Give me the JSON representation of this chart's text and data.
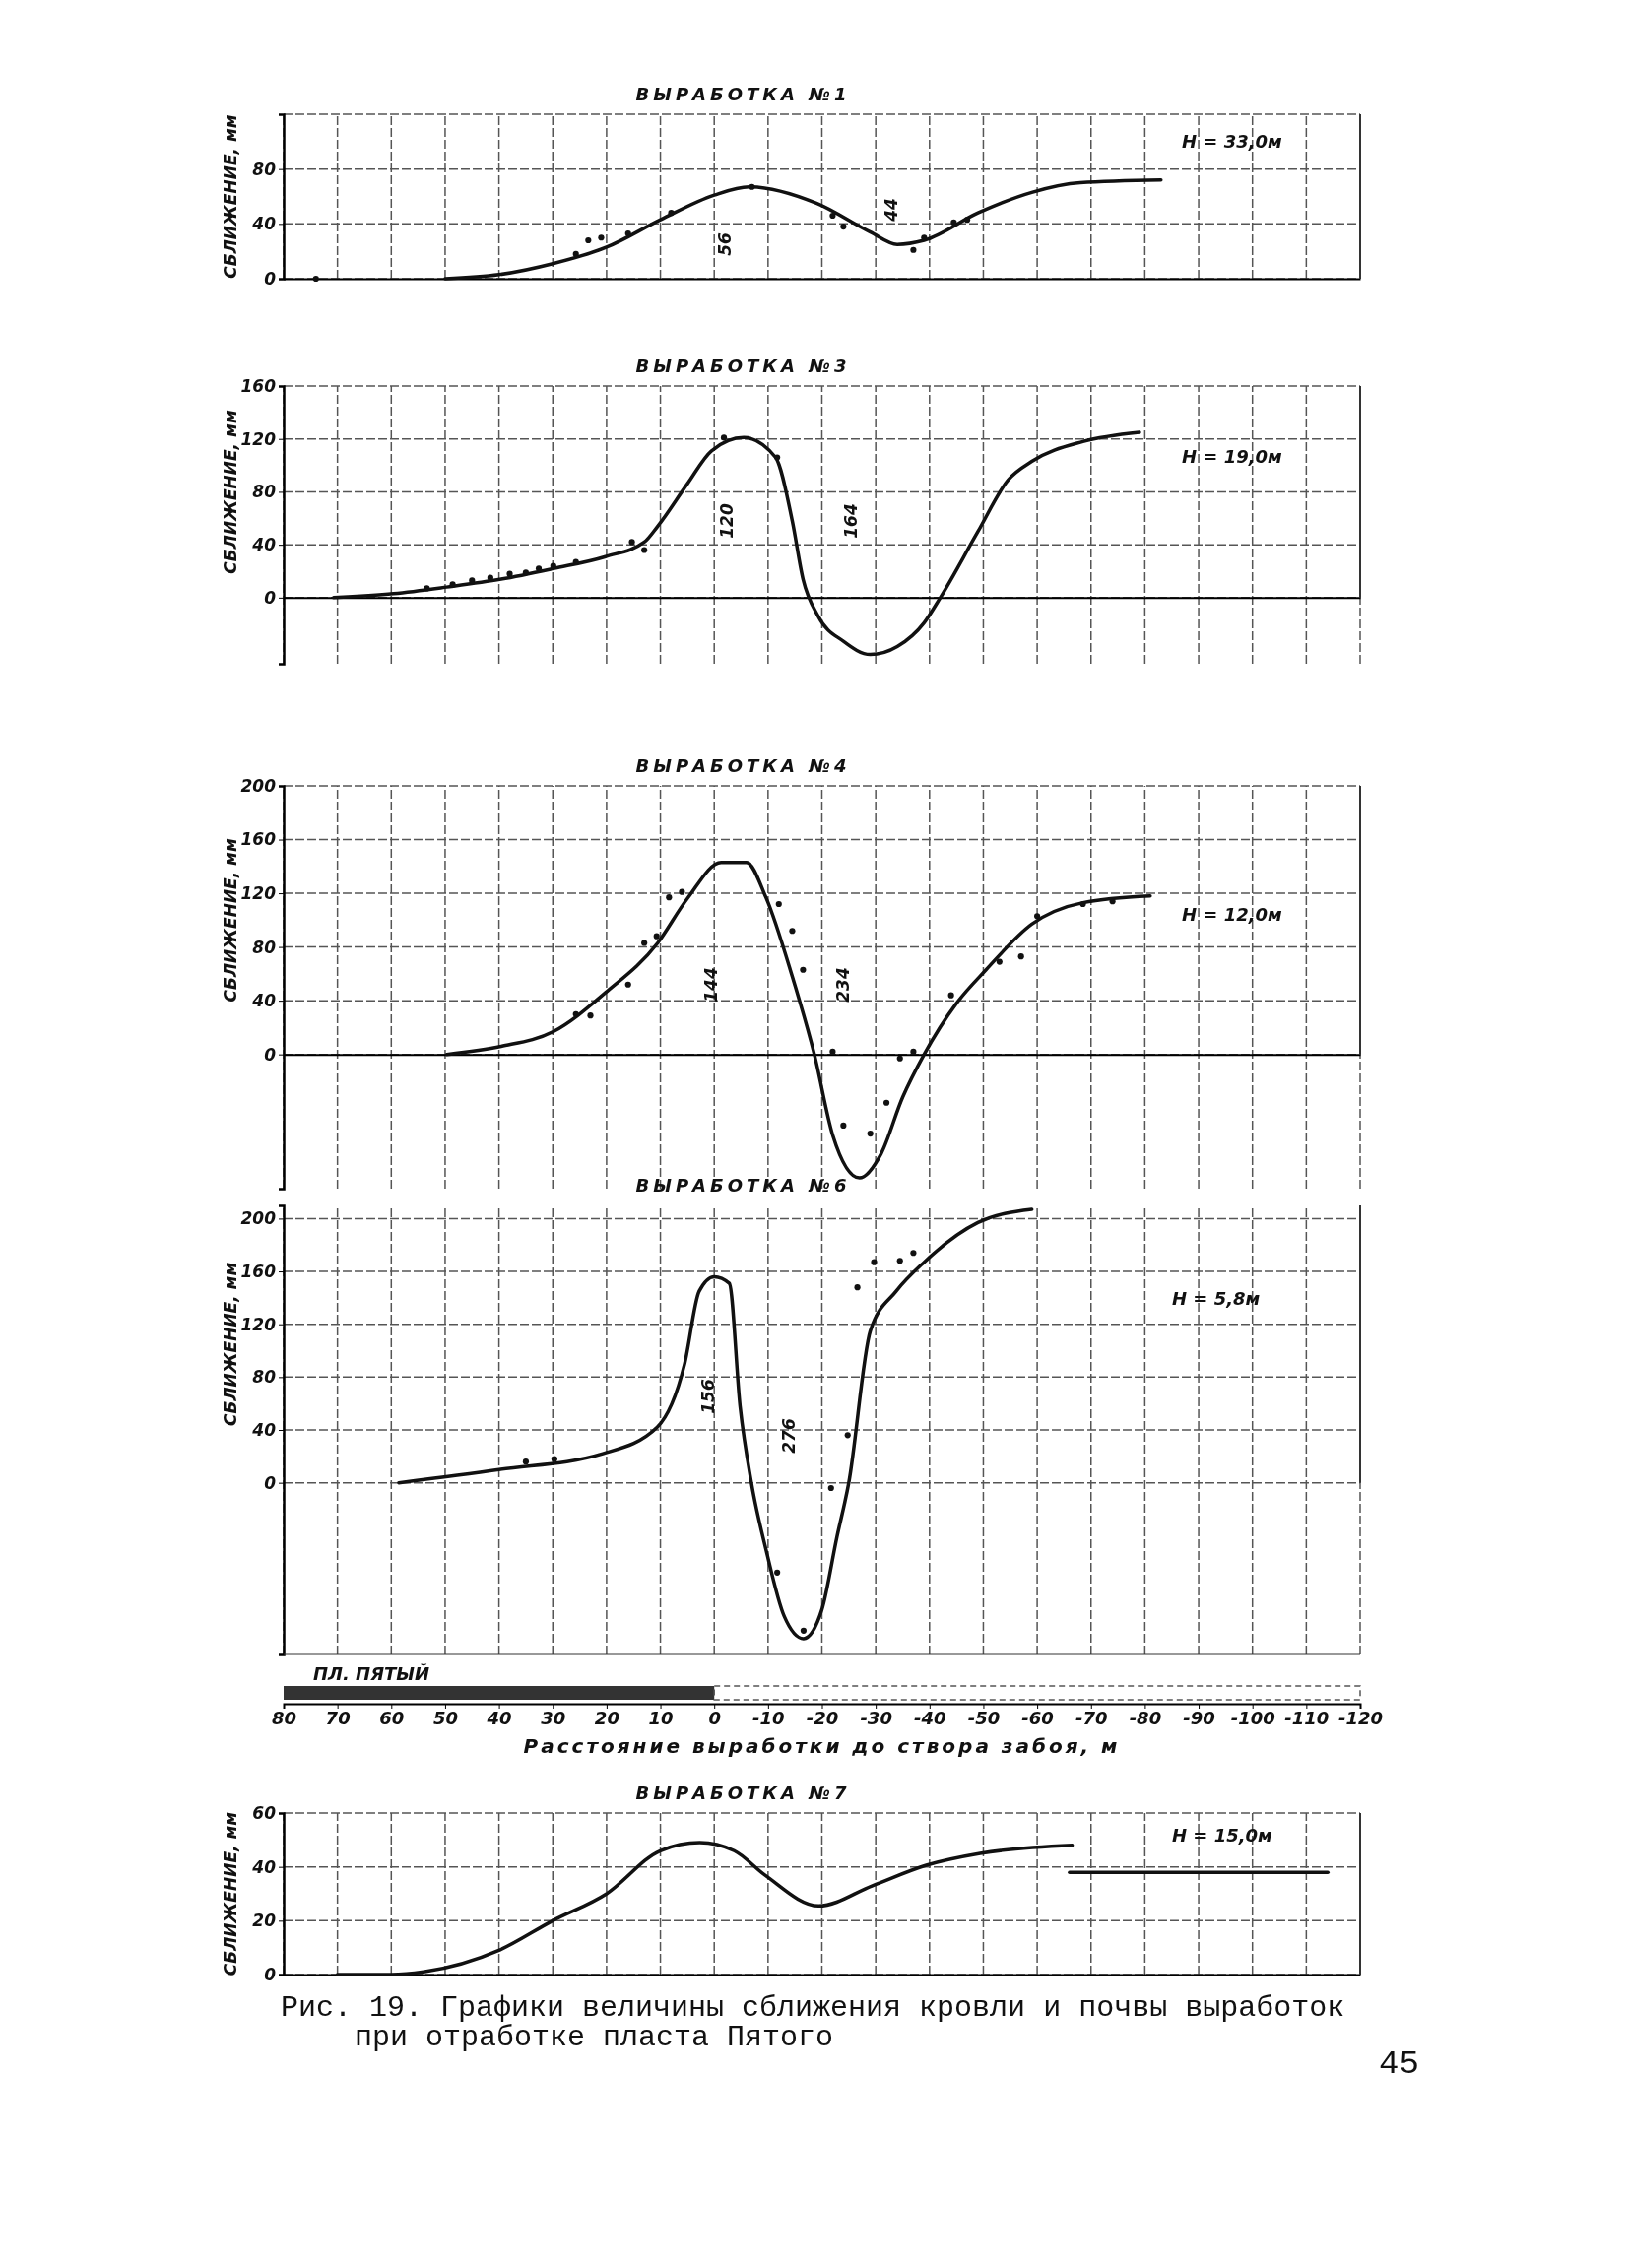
{
  "chart_data": [
    {
      "type": "line",
      "title": "ВЫРАБОТКА №1",
      "ylabel": "СБЛИЖЕНИЕ, мм",
      "xlim": [
        80,
        -120
      ],
      "xticks": [
        80,
        70,
        60,
        50,
        40,
        30,
        20,
        10,
        0,
        -10,
        -20,
        -30,
        -40,
        -50,
        -60,
        -70,
        -80,
        -90,
        -100,
        -110,
        -120
      ],
      "ylim": [
        0,
        120
      ],
      "yticks": [
        0,
        40,
        80,
        {
          "value": 120,
          "label": null
        }
      ],
      "grid": true,
      "tick_labels": "y",
      "series": [
        {
          "color": "#111111",
          "x": [
            50,
            40,
            30,
            20,
            10,
            0,
            -6.5,
            -19,
            -29,
            -34,
            -39,
            -49,
            -59,
            -68,
            -83
          ],
          "values": [
            0,
            3,
            11,
            23,
            43,
            61,
            67,
            55,
            34,
            25,
            28,
            48,
            63,
            70,
            72
          ]
        },
        {
          "type": "scatter",
          "color": "#111111",
          "marker": "circle",
          "x": [
            74,
            25.7,
            23.4,
            21,
            16,
            8,
            -7,
            -22,
            -24,
            -37,
            -39,
            -44.5,
            -47
          ],
          "values": [
            0,
            18,
            28,
            30,
            33,
            48,
            67,
            46,
            38,
            21,
            30,
            41,
            43
          ]
        }
      ],
      "annotations": [
        "H = 33,0м",
        "56",
        "44"
      ]
    },
    {
      "type": "line",
      "title": "ВЫРАБОТКА №3",
      "ylabel": "СБЛИЖЕНИЕ, мм",
      "xlim": [
        80,
        -120
      ],
      "xticks": [
        80,
        70,
        60,
        50,
        40,
        30,
        20,
        10,
        0,
        -10,
        -20,
        -30,
        -40,
        -50,
        -60,
        -70,
        -80,
        -90,
        -100,
        -110,
        -120
      ],
      "ylim": [
        -50,
        160
      ],
      "yticks": [
        0,
        40,
        80,
        120,
        160
      ],
      "grid": true,
      "tick_labels": "y",
      "series": [
        {
          "color": "#111111",
          "x": [
            70.7,
            59.6,
            49.7,
            39.6,
            29.9,
            20.2,
            13,
            10.5,
            5,
            0.5,
            -5.5,
            -11.4,
            -14.5,
            -16.5,
            -19.3,
            -24,
            -29,
            -34,
            -39,
            -42,
            -49,
            -54.6,
            -59,
            -68.5,
            -79
          ],
          "values": [
            0,
            3,
            8,
            14,
            22,
            31,
            42,
            54,
            86,
            111,
            121,
            106,
            58,
            14,
            -14,
            -33,
            -43,
            -37,
            -19,
            0,
            50,
            89,
            103,
            118,
            125
          ]
        },
        {
          "type": "scatter",
          "color": "#111111",
          "marker": "circle",
          "x": [
            53.4,
            48.6,
            45,
            41.6,
            38,
            35,
            32.6,
            29.9,
            25.7,
            15.3,
            13,
            -1.8,
            -11.7
          ],
          "values": [
            7,
            10,
            13,
            15,
            18,
            19,
            22,
            24,
            27,
            42,
            36,
            121,
            106
          ]
        }
      ],
      "annotations": [
        "H = 19,0м",
        "120",
        "164"
      ]
    },
    {
      "type": "line",
      "title": "ВЫРАБОТКА №4",
      "ylabel": "СБЛИЖЕНИЕ, мм",
      "xlim": [
        80,
        -120
      ],
      "xticks": [
        80,
        70,
        60,
        50,
        40,
        30,
        20,
        10,
        0,
        -10,
        -20,
        -30,
        -40,
        -50,
        -60,
        -70,
        -80,
        -90,
        -100,
        -110,
        -120
      ],
      "ylim": [
        -100,
        200
      ],
      "yticks": [
        0,
        40,
        80,
        120,
        160,
        200
      ],
      "grid": true,
      "tick_labels": "y",
      "series": [
        {
          "color": "#111111",
          "x": [
            49.7,
            39.6,
            29.9,
            20.2,
            10.5,
            5,
            -1.3,
            -6,
            -9.6,
            -14.5,
            -18.6,
            -22,
            -27,
            -31,
            -35,
            -39,
            -45,
            -50.5,
            -59,
            -68.5,
            -81
          ],
          "values": [
            0,
            6,
            17,
            46,
            83,
            116,
            143,
            143,
            117,
            58,
            0,
            -60,
            -92,
            -74,
            -32,
            0,
            38,
            63,
            97,
            113,
            118
          ]
        },
        {
          "type": "scatter",
          "color": "#111111",
          "marker": "circle",
          "x": [
            25.7,
            23,
            16,
            13,
            10.7,
            8.4,
            6,
            -12,
            -14.5,
            -16.5,
            -22,
            -24,
            -29,
            -32,
            -34.5,
            -37,
            -44,
            -53,
            -57,
            -60,
            -68.5,
            -74
          ],
          "values": [
            30,
            29,
            52,
            83,
            88,
            117,
            121,
            112,
            92,
            63,
            2,
            -53,
            -59,
            -36,
            -3,
            2,
            44,
            69,
            73,
            103,
            112,
            114
          ]
        }
      ],
      "annotations": [
        "H = 12,0м",
        "144",
        "234"
      ]
    },
    {
      "type": "line",
      "title": "ВЫРАБОТКА №6",
      "ylabel": "СБЛИЖЕНИЕ, мм",
      "xlabel": "Расстояние выработки до створа забоя, м",
      "xlim": [
        80,
        -120
      ],
      "xticks": [
        80,
        70,
        60,
        50,
        40,
        30,
        20,
        10,
        0,
        -10,
        -20,
        -30,
        -40,
        -50,
        -60,
        -70,
        -80,
        -90,
        -100,
        -110,
        -120
      ],
      "ylim": [
        -130,
        210
      ],
      "yticks": [
        0,
        40,
        80,
        120,
        160,
        200
      ],
      "grid": true,
      "series": [
        {
          "color": "#111111",
          "x": [
            58.6,
            40,
            20.7,
            10.6,
            5.5,
            2.8,
            0,
            -2.8,
            -4.8,
            -6.9,
            -9.7,
            -13,
            -16.6,
            -20,
            -22.8,
            -25,
            -29,
            -33.8,
            -39,
            -49,
            -59
          ],
          "values": [
            0,
            10,
            22,
            42,
            90,
            145,
            156,
            151,
            58,
            0,
            -52,
            -101,
            -118,
            -96,
            -41,
            0,
            115,
            145,
            167,
            197,
            207
          ]
        },
        {
          "type": "scatter",
          "color": "#111111",
          "marker": "circle",
          "x": [
            35,
            29.7,
            -11.7,
            -16.6,
            -21.7,
            -24.8,
            -26.6,
            -29.7,
            -34.5,
            -37
          ],
          "values": [
            16,
            18,
            -68,
            -112,
            -4,
            36,
            148,
            167,
            168,
            174
          ]
        }
      ],
      "annotations": [
        "H = 5,8м",
        "156",
        "276",
        "ПЛ. ПЯТЫЙ"
      ]
    },
    {
      "type": "line",
      "title": "ВЫРАБОТКА №7",
      "ylabel": "СБЛИЖЕНИЕ, мм",
      "xlim": [
        80,
        -120
      ],
      "xticks": [
        80,
        70,
        60,
        50,
        40,
        30,
        20,
        10,
        0,
        -10,
        -20,
        -30,
        -40,
        -50,
        -60,
        -70,
        -80,
        -90,
        -100,
        -110,
        -120
      ],
      "ylim": [
        0,
        60
      ],
      "yticks": [
        0,
        20,
        40,
        60
      ],
      "grid": true,
      "tick_labels": "y",
      "series": [
        {
          "color": "#111111",
          "x": [
            70,
            60,
            54,
            40,
            30,
            20,
            10,
            2.7,
            -3.7,
            -9.4,
            -19.4,
            -29.4,
            -39.4,
            -49.4,
            -66.5
          ],
          "values": [
            0,
            0,
            1,
            9,
            20,
            30,
            46,
            49,
            46,
            37,
            25.5,
            33,
            40.6,
            45,
            48
          ]
        },
        {
          "color": "#111111",
          "x": [
            -66,
            -114
          ],
          "values": [
            38,
            38
          ]
        }
      ],
      "annotations": [
        "H = 15,0м",
        "Рис. 19. Графики величины сближения кровли и почвы выработок при отработке пласта Пятого",
        "45"
      ]
    }
  ]
}
